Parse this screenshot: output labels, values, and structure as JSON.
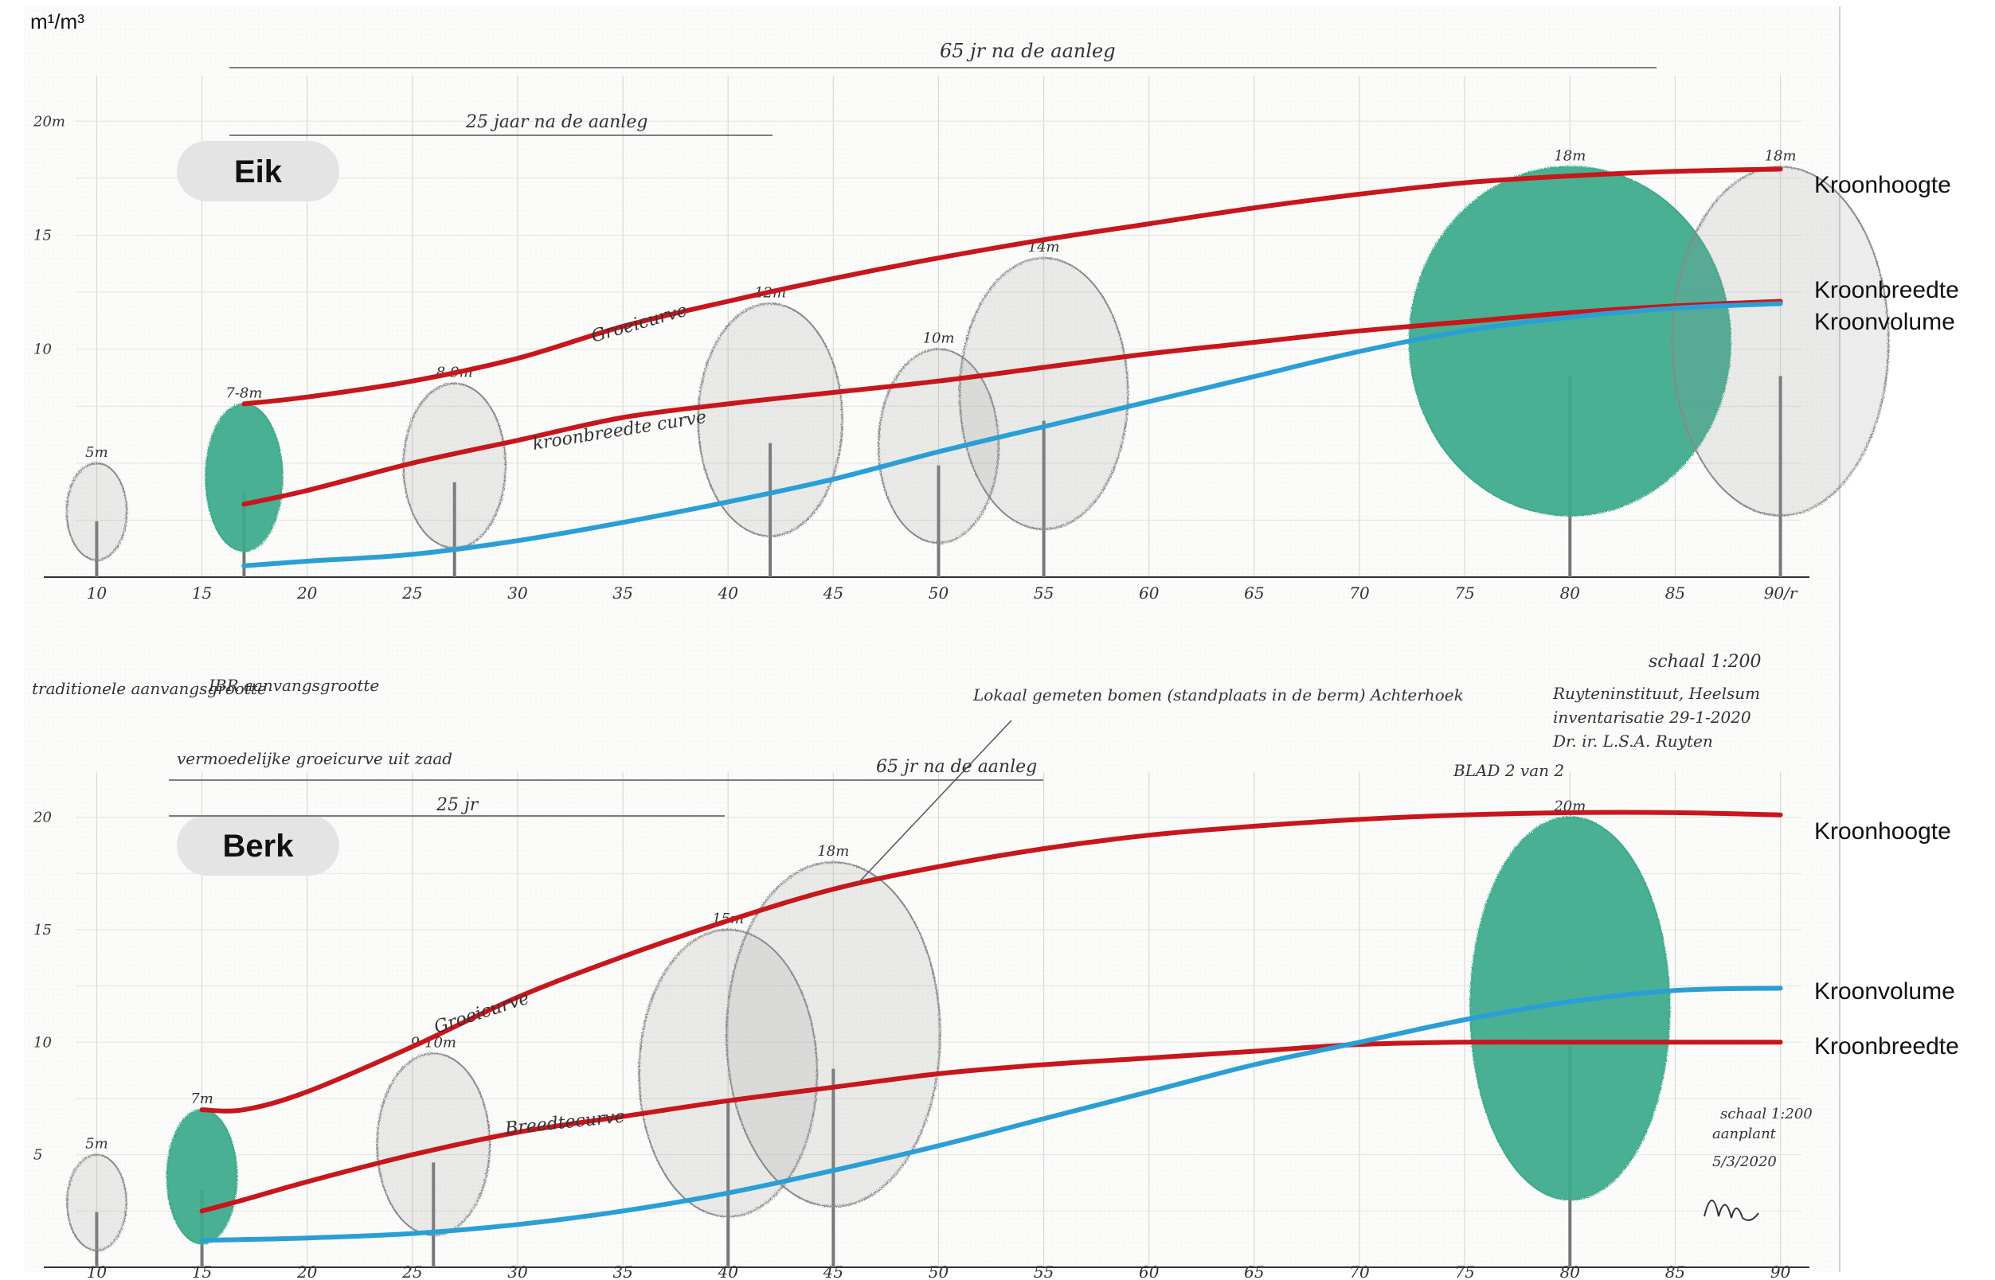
{
  "unit_label": "m¹/m³",
  "colors": {
    "height_curve": "#c8161d",
    "width_curve": "#c8161d",
    "volume_curve": "#2a9fd6",
    "crown_fill": "#3aa98a",
    "pill_bg": "#e4e4e4"
  },
  "annotations": {
    "top_span_65": "65 jr na de aanleg",
    "top_span_25": "25 jaar na de aanleg",
    "groeicurve": "Groeicurve",
    "kroonbreedte_curve": "kroonbreedte curve",
    "trad": "traditionele aanvangsgrootte",
    "ibr": "IBR aanvangsgrootte",
    "lokaal": "Lokaal gemeten bomen (standplaats in de berm) Achterhoek",
    "schaal": "schaal 1:200",
    "inst1": "Ruyteninstituut, Heelsum",
    "inst2": "inventarisatie 29-1-2020",
    "inst3": "Dr. ir. L.S.A. Ruyten",
    "blad": "BLAD 2 van 2",
    "vermoed": "vermoedelijke groeicurve uit zaad",
    "bottom_span_65": "65 jr na de aanleg",
    "bottom_span_25": "25 jr",
    "groeicurve2": "Groeicurve",
    "breedtecurve": "Breedtecurve",
    "schaal2": "schaal 1:200",
    "aanplant": "aanplant",
    "date2": "5/3/2020"
  },
  "chart_data": [
    {
      "type": "line",
      "title": "Eik",
      "xlabel": "",
      "ylabel": "m¹/m³",
      "xlim": [
        9,
        91
      ],
      "ylim": [
        0,
        22
      ],
      "x_ticks": [
        10,
        15,
        20,
        25,
        30,
        35,
        40,
        45,
        50,
        55,
        60,
        65,
        70,
        75,
        80,
        85,
        90
      ],
      "x_tick_labels": [
        "10",
        "15",
        "20",
        "25",
        "30",
        "35",
        "40",
        "45",
        "50",
        "55",
        "60",
        "65",
        "70",
        "75",
        "80",
        "85",
        "90/r"
      ],
      "y_ticks": [
        10,
        15,
        20
      ],
      "y_tick_labels": [
        "10",
        "15",
        "20m"
      ],
      "series": [
        {
          "name": "Kroonhoogte",
          "color": "#c8161d",
          "x": [
            17,
            20,
            25,
            30,
            35,
            40,
            45,
            50,
            55,
            60,
            65,
            70,
            75,
            80,
            85,
            90
          ],
          "y": [
            7.6,
            7.9,
            8.6,
            9.6,
            11.0,
            12.1,
            13.1,
            14.0,
            14.8,
            15.5,
            16.2,
            16.8,
            17.3,
            17.6,
            17.8,
            17.9
          ]
        },
        {
          "name": "Kroonbreedte",
          "color": "#c8161d",
          "x": [
            17,
            20,
            25,
            30,
            35,
            40,
            45,
            50,
            55,
            60,
            65,
            70,
            75,
            80,
            85,
            90
          ],
          "y": [
            3.2,
            3.8,
            5.0,
            6.0,
            7.0,
            7.6,
            8.1,
            8.6,
            9.2,
            9.8,
            10.3,
            10.8,
            11.2,
            11.6,
            11.9,
            12.1
          ]
        },
        {
          "name": "Kroonvolume",
          "color": "#2a9fd6",
          "x": [
            17,
            20,
            25,
            30,
            35,
            40,
            45,
            50,
            55,
            60,
            65,
            70,
            75,
            80,
            85,
            90
          ],
          "y": [
            0.5,
            0.7,
            1.0,
            1.6,
            2.4,
            3.3,
            4.3,
            5.5,
            6.6,
            7.7,
            8.8,
            9.9,
            10.8,
            11.4,
            11.8,
            12.0
          ]
        }
      ],
      "legend_labels": [
        "Kroonhoogte",
        "Kroonbreedte",
        "Kroonvolume"
      ],
      "legend_position": "right",
      "trees": [
        {
          "x": 10,
          "height": 5,
          "label": "5m",
          "highlight": false
        },
        {
          "x": 17,
          "height": 7.6,
          "label": "7-8m",
          "highlight": true
        },
        {
          "x": 27,
          "height": 8.5,
          "label": "8-9m",
          "highlight": false
        },
        {
          "x": 42,
          "height": 12,
          "label": "12m",
          "highlight": false
        },
        {
          "x": 50,
          "height": 10,
          "label": "10m",
          "highlight": false
        },
        {
          "x": 55,
          "height": 14,
          "label": "14m",
          "highlight": false
        },
        {
          "x": 80,
          "height": 18,
          "label": "18m",
          "highlight": true
        },
        {
          "x": 90,
          "height": 18,
          "label": "18m",
          "highlight": false
        }
      ],
      "pill": "Eik"
    },
    {
      "type": "line",
      "title": "Berk",
      "xlabel": "",
      "ylabel": "",
      "xlim": [
        9,
        91
      ],
      "ylim": [
        0,
        22
      ],
      "x_ticks": [
        10,
        15,
        20,
        25,
        30,
        35,
        40,
        45,
        50,
        55,
        60,
        65,
        70,
        75,
        80,
        85,
        90
      ],
      "x_tick_labels": [
        "10",
        "15",
        "20",
        "25",
        "30",
        "35",
        "40",
        "45",
        "50",
        "55",
        "60",
        "65",
        "70",
        "75",
        "80",
        "85",
        "90"
      ],
      "y_ticks": [
        5,
        10,
        15,
        20
      ],
      "y_tick_labels": [
        "5",
        "10",
        "15",
        "20"
      ],
      "series": [
        {
          "name": "Kroonhoogte",
          "color": "#c8161d",
          "x": [
            15,
            17,
            20,
            25,
            30,
            35,
            40,
            45,
            50,
            55,
            60,
            65,
            70,
            75,
            80,
            85,
            90
          ],
          "y": [
            7.0,
            7.0,
            7.8,
            9.8,
            12.0,
            13.8,
            15.4,
            16.8,
            17.8,
            18.6,
            19.2,
            19.6,
            19.9,
            20.1,
            20.2,
            20.2,
            20.1
          ]
        },
        {
          "name": "Kroonbreedte",
          "color": "#c8161d",
          "x": [
            15,
            17,
            20,
            25,
            30,
            35,
            40,
            45,
            50,
            55,
            60,
            65,
            70,
            75,
            80,
            85,
            90
          ],
          "y": [
            2.5,
            3.0,
            3.8,
            5.0,
            6.0,
            6.7,
            7.4,
            8.0,
            8.6,
            9.0,
            9.3,
            9.6,
            9.9,
            10.0,
            10.0,
            10.0,
            10.0
          ]
        },
        {
          "name": "Kroonvolume",
          "color": "#2a9fd6",
          "x": [
            15,
            20,
            25,
            30,
            35,
            40,
            45,
            50,
            55,
            60,
            65,
            70,
            75,
            80,
            85,
            90
          ],
          "y": [
            1.2,
            1.3,
            1.5,
            1.9,
            2.5,
            3.3,
            4.3,
            5.4,
            6.6,
            7.8,
            9.0,
            10.0,
            11.0,
            11.8,
            12.3,
            12.4
          ]
        }
      ],
      "legend_labels": [
        "Kroonhoogte",
        "Kroonvolume",
        "Kroonbreedte"
      ],
      "legend_position": "right",
      "trees": [
        {
          "x": 10,
          "height": 5,
          "label": "5m",
          "highlight": false
        },
        {
          "x": 15,
          "height": 7,
          "label": "7m",
          "highlight": true
        },
        {
          "x": 26,
          "height": 9.5,
          "label": "9-10m",
          "highlight": false
        },
        {
          "x": 40,
          "height": 15,
          "label": "15m",
          "highlight": false
        },
        {
          "x": 45,
          "height": 18,
          "label": "18m",
          "highlight": false
        },
        {
          "x": 80,
          "height": 20,
          "label": "20m",
          "highlight": true
        }
      ],
      "pill": "Berk"
    }
  ]
}
